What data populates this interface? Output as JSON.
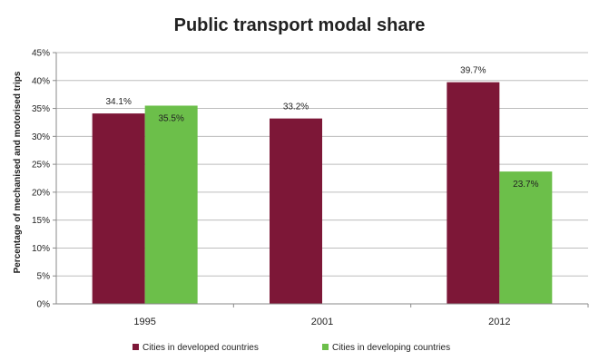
{
  "chart_data": {
    "type": "bar",
    "title": "Public transport modal share",
    "xlabel": "",
    "ylabel": "Percentage of mechanised and motorised trips",
    "categories": [
      "1995",
      "2001",
      "2012"
    ],
    "series": [
      {
        "name": "Cities in developed countries",
        "color": "#7d1737",
        "values": [
          34.1,
          33.2,
          39.7
        ],
        "labels": [
          "34.1%",
          "33.2%",
          "39.7%"
        ]
      },
      {
        "name": "Cities in developing countries",
        "color": "#6cbf4a",
        "values": [
          35.5,
          null,
          23.7
        ],
        "labels": [
          "35.5%",
          "",
          "23.7%"
        ]
      }
    ],
    "ylim": [
      0,
      45
    ],
    "yticks": [
      0,
      5,
      10,
      15,
      20,
      25,
      30,
      35,
      40,
      45
    ],
    "ytick_labels": [
      "0%",
      "5%",
      "10%",
      "15%",
      "20%",
      "25%",
      "30%",
      "35%",
      "40%",
      "45%"
    ],
    "grid": true,
    "legend_position": "bottom"
  }
}
